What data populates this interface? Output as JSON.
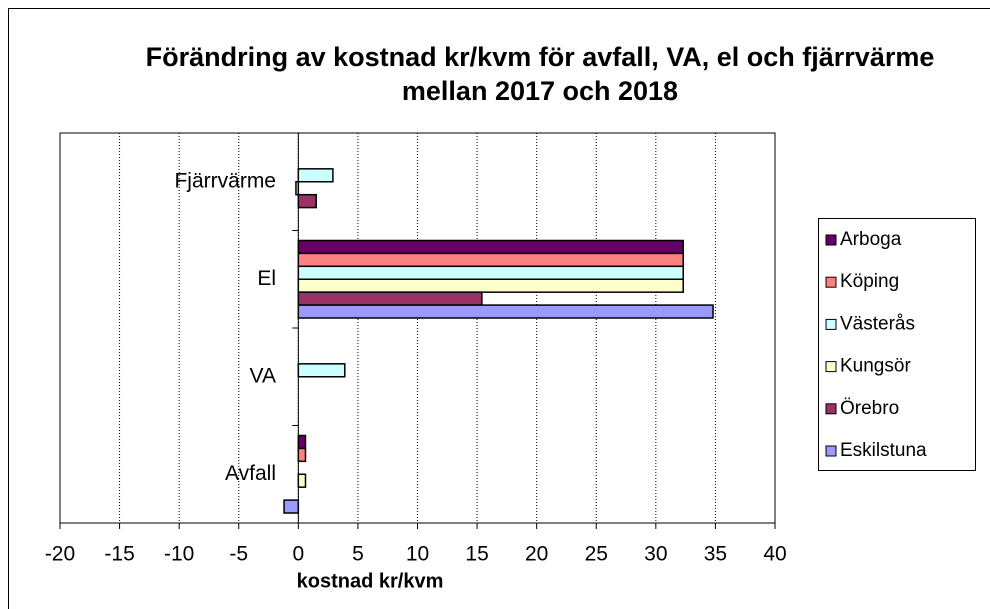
{
  "chart_data": {
    "type": "barh",
    "title": "Förändring av kostnad kr/kvm för avfall, VA, el och fjärrvärme mellan 2017 och 2018",
    "xlabel": "kostnad kr/kvm",
    "categories": [
      "Avfall",
      "VA",
      "El",
      "Fjärrvärme"
    ],
    "series": [
      {
        "name": "Arboga",
        "color": "#660066",
        "values": [
          0.6,
          0,
          32.3,
          0
        ]
      },
      {
        "name": "Köping",
        "color": "#ff8080",
        "values": [
          0.6,
          0,
          32.3,
          0
        ]
      },
      {
        "name": "Västerås",
        "color": "#ccffff",
        "values": [
          0,
          3.9,
          32.3,
          2.9
        ]
      },
      {
        "name": "Kungsör",
        "color": "#ffffcc",
        "values": [
          0.6,
          0,
          32.3,
          -0.2
        ]
      },
      {
        "name": "Örebro",
        "color": "#993366",
        "values": [
          0,
          0,
          15.4,
          1.5
        ]
      },
      {
        "name": "Eskilstuna",
        "color": "#9999ff",
        "values": [
          -1.2,
          0,
          34.8,
          0
        ]
      }
    ],
    "xlim": [
      -20,
      40
    ],
    "xticks": [
      -20,
      -15,
      -10,
      -5,
      0,
      5,
      10,
      15,
      20,
      25,
      30,
      35,
      40
    ],
    "grid": true,
    "legend": "right"
  }
}
